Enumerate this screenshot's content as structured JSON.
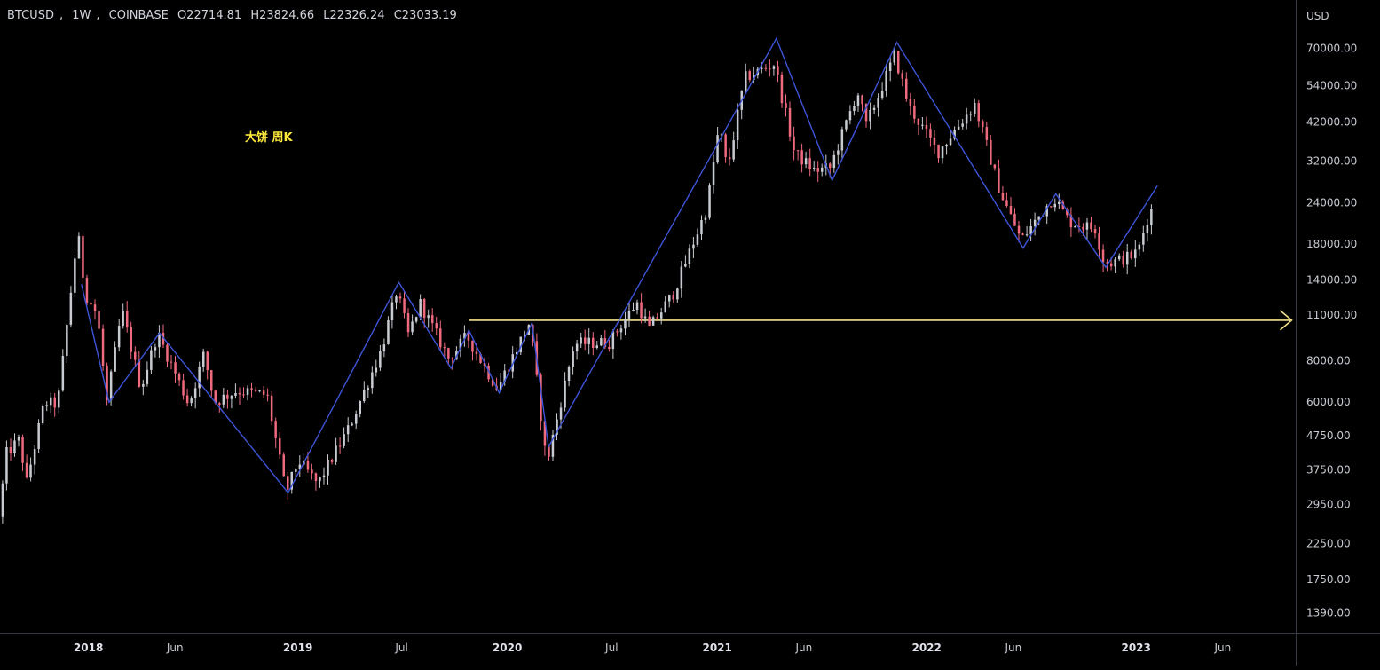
{
  "header": {
    "symbol": "BTCUSD",
    "interval": "1W",
    "exchange": "COINBASE",
    "open": "O22714.81",
    "high": "H23824.66",
    "low": "L22326.24",
    "close": "C23033.19"
  },
  "annotation": {
    "text": "大饼  周K",
    "color": "#ffeb3b"
  },
  "colors": {
    "up": "#c8ccd2",
    "down": "#f06a7e",
    "zigzag": "#3d54d8",
    "level": "#f2e08a",
    "background": "#000000"
  },
  "chart_data": {
    "type": "candlestick",
    "currency_label": "USD",
    "y_scale": "log",
    "ylim": [
      1210,
      98000
    ],
    "y_ticks": [
      {
        "value": 70000,
        "label": "70000.00"
      },
      {
        "value": 54000,
        "label": "54000.00"
      },
      {
        "value": 42000,
        "label": "42000.00"
      },
      {
        "value": 32000,
        "label": "32000.00"
      },
      {
        "value": 24000,
        "label": "24000.00"
      },
      {
        "value": 18000,
        "label": "18000.00"
      },
      {
        "value": 14000,
        "label": "14000.00"
      },
      {
        "value": 11000,
        "label": "11000.00"
      },
      {
        "value": 8000,
        "label": "8000.00"
      },
      {
        "value": 6000,
        "label": "6000.00"
      },
      {
        "value": 4750,
        "label": "4750.00"
      },
      {
        "value": 3750,
        "label": "3750.00"
      },
      {
        "value": 2950,
        "label": "2950.00"
      },
      {
        "value": 2250,
        "label": "2250.00"
      },
      {
        "value": 1750,
        "label": "1750.00"
      },
      {
        "value": 1390,
        "label": "1390.00"
      }
    ],
    "xlim": [
      "2017-07-31",
      "2023-10-06"
    ],
    "x_ticks": [
      {
        "date": "2018-01-01",
        "label": "2018",
        "major": true
      },
      {
        "date": "2018-06-01",
        "label": "Jun",
        "major": false
      },
      {
        "date": "2019-01-01",
        "label": "2019",
        "major": true
      },
      {
        "date": "2019-07-01",
        "label": "Jul",
        "major": false
      },
      {
        "date": "2020-01-01",
        "label": "2020",
        "major": true
      },
      {
        "date": "2020-07-01",
        "label": "Jul",
        "major": false
      },
      {
        "date": "2021-01-01",
        "label": "2021",
        "major": true
      },
      {
        "date": "2021-06-01",
        "label": "Jun",
        "major": false
      },
      {
        "date": "2022-01-01",
        "label": "2022",
        "major": true
      },
      {
        "date": "2022-06-01",
        "label": "Jun",
        "major": false
      },
      {
        "date": "2023-01-01",
        "label": "2023",
        "major": true
      },
      {
        "date": "2023-06-01",
        "label": "Jun",
        "major": false
      }
    ],
    "price_path": [
      [
        "2017-08-01",
        2700
      ],
      [
        "2017-08-15",
        4200
      ],
      [
        "2017-09-10",
        4700
      ],
      [
        "2017-09-15",
        3200
      ],
      [
        "2017-10-20",
        6000
      ],
      [
        "2017-11-12",
        5900
      ],
      [
        "2017-12-17",
        19500
      ],
      [
        "2017-12-30",
        12800
      ],
      [
        "2018-01-20",
        11000
      ],
      [
        "2018-02-06",
        6000
      ],
      [
        "2018-03-04",
        11400
      ],
      [
        "2018-04-06",
        6600
      ],
      [
        "2018-05-05",
        9700
      ],
      [
        "2018-06-29",
        5900
      ],
      [
        "2018-07-25",
        8400
      ],
      [
        "2018-08-12",
        6000
      ],
      [
        "2018-09-20",
        6500
      ],
      [
        "2018-11-12",
        6300
      ],
      [
        "2018-12-15",
        3200
      ],
      [
        "2019-01-06",
        4000
      ],
      [
        "2019-02-08",
        3400
      ],
      [
        "2019-04-03",
        5000
      ],
      [
        "2019-05-30",
        8600
      ],
      [
        "2019-06-26",
        13000
      ],
      [
        "2019-07-16",
        9600
      ],
      [
        "2019-08-06",
        11900
      ],
      [
        "2019-09-25",
        8100
      ],
      [
        "2019-10-26",
        9500
      ],
      [
        "2019-12-18",
        6600
      ],
      [
        "2020-02-13",
        10500
      ],
      [
        "2020-03-13",
        3900
      ],
      [
        "2020-04-30",
        9000
      ],
      [
        "2020-06-30",
        9100
      ],
      [
        "2020-08-17",
        12000
      ],
      [
        "2020-09-08",
        10000
      ],
      [
        "2020-10-20",
        12800
      ],
      [
        "2020-12-17",
        23000
      ],
      [
        "2021-01-08",
        41000
      ],
      [
        "2021-01-22",
        30000
      ],
      [
        "2021-02-21",
        57000
      ],
      [
        "2021-04-14",
        63000
      ],
      [
        "2021-05-19",
        34000
      ],
      [
        "2021-06-22",
        30000
      ],
      [
        "2021-07-20",
        30500
      ],
      [
        "2021-09-06",
        52000
      ],
      [
        "2021-09-21",
        41000
      ],
      [
        "2021-11-10",
        67000
      ],
      [
        "2021-12-04",
        47000
      ],
      [
        "2022-01-24",
        34000
      ],
      [
        "2022-03-29",
        47500
      ],
      [
        "2022-05-12",
        26000
      ],
      [
        "2022-06-18",
        18500
      ],
      [
        "2022-08-14",
        25000
      ],
      [
        "2022-09-10",
        21000
      ],
      [
        "2022-10-25",
        20000
      ],
      [
        "2022-11-09",
        16000
      ],
      [
        "2022-11-21",
        15800
      ],
      [
        "2022-12-29",
        16600
      ],
      [
        "2023-01-08",
        17200
      ],
      [
        "2023-01-29",
        23033
      ]
    ],
    "zigzag": [
      [
        "2017-12-20",
        13600
      ],
      [
        "2018-02-06",
        6000
      ],
      [
        "2018-05-05",
        9700
      ],
      [
        "2018-12-15",
        3200
      ],
      [
        "2019-06-26",
        13800
      ],
      [
        "2019-09-25",
        7600
      ],
      [
        "2019-10-26",
        9900
      ],
      [
        "2019-12-18",
        6400
      ],
      [
        "2020-02-13",
        10400
      ],
      [
        "2020-03-13",
        4400
      ],
      [
        "2021-04-14",
        75000
      ],
      [
        "2021-07-20",
        28000
      ],
      [
        "2021-11-10",
        73000
      ],
      [
        "2022-06-18",
        17500
      ],
      [
        "2022-08-14",
        25500
      ],
      [
        "2022-11-09",
        15300
      ],
      [
        "2023-02-07",
        27000
      ]
    ],
    "horizontal_level": {
      "value": 10600,
      "start": "2019-10-26",
      "end": "2023-09-29"
    }
  }
}
